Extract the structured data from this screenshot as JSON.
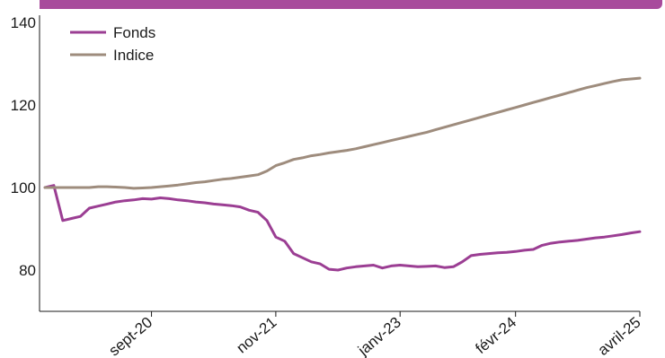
{
  "chart_data": {
    "type": "line",
    "title": "",
    "xlabel": "",
    "ylabel": "",
    "ylim": [
      70,
      140
    ],
    "yticks": [
      80,
      100,
      120,
      140
    ],
    "xticks": [
      "sept-20",
      "nov-21",
      "janv-23",
      "févr-24",
      "avril-25"
    ],
    "legend_position": "top-left",
    "grid": false,
    "x": [
      "2019-09",
      "2019-10",
      "2019-11",
      "2019-12",
      "2020-01",
      "2020-02",
      "2020-03",
      "2020-04",
      "2020-05",
      "2020-06",
      "2020-07",
      "2020-08",
      "2020-09",
      "2020-10",
      "2020-11",
      "2020-12",
      "2021-01",
      "2021-02",
      "2021-03",
      "2021-04",
      "2021-05",
      "2021-06",
      "2021-07",
      "2021-08",
      "2021-09",
      "2021-10",
      "2021-11",
      "2021-12",
      "2022-01",
      "2022-02",
      "2022-03",
      "2022-04",
      "2022-05",
      "2022-06",
      "2022-07",
      "2022-08",
      "2022-09",
      "2022-10",
      "2022-11",
      "2022-12",
      "2023-01",
      "2023-02",
      "2023-03",
      "2023-04",
      "2023-05",
      "2023-06",
      "2023-07",
      "2023-08",
      "2023-09",
      "2023-10",
      "2023-11",
      "2023-12",
      "2024-01",
      "2024-02",
      "2024-03",
      "2024-04",
      "2024-05",
      "2024-06",
      "2024-07",
      "2024-08",
      "2024-09",
      "2024-10",
      "2024-11",
      "2024-12",
      "2025-01",
      "2025-02",
      "2025-03",
      "2025-04"
    ],
    "series": [
      {
        "name": "Fonds",
        "color": "#9b3e93",
        "values": [
          100.0,
          100.5,
          92.0,
          92.5,
          93.0,
          95.0,
          95.5,
          96.0,
          96.5,
          96.8,
          97.0,
          97.3,
          97.2,
          97.5,
          97.3,
          97.0,
          96.8,
          96.5,
          96.3,
          96.0,
          95.8,
          95.6,
          95.3,
          94.5,
          94.0,
          92.0,
          88.0,
          87.0,
          84.0,
          83.0,
          82.0,
          81.5,
          80.2,
          80.0,
          80.5,
          80.8,
          81.0,
          81.2,
          80.5,
          81.0,
          81.2,
          81.0,
          80.8,
          80.9,
          81.0,
          80.6,
          80.8,
          82.0,
          83.5,
          83.8,
          84.0,
          84.2,
          84.3,
          84.5,
          84.8,
          85.0,
          86.0,
          86.5,
          86.8,
          87.0,
          87.2,
          87.5,
          87.8,
          88.0,
          88.3,
          88.6,
          89.0,
          89.3
        ]
      },
      {
        "name": "Indice",
        "color": "#9e8c7d",
        "values": [
          100.0,
          100.0,
          100.0,
          100.0,
          100.0,
          100.0,
          100.2,
          100.2,
          100.1,
          100.0,
          99.8,
          99.9,
          100.0,
          100.2,
          100.4,
          100.6,
          100.9,
          101.2,
          101.4,
          101.7,
          102.0,
          102.2,
          102.5,
          102.8,
          103.1,
          104.0,
          105.3,
          106.0,
          106.8,
          107.2,
          107.7,
          108.0,
          108.4,
          108.7,
          109.0,
          109.4,
          109.9,
          110.4,
          110.9,
          111.4,
          111.9,
          112.4,
          112.9,
          113.4,
          114.0,
          114.6,
          115.2,
          115.8,
          116.4,
          117.0,
          117.6,
          118.2,
          118.8,
          119.4,
          120.0,
          120.6,
          121.2,
          121.8,
          122.4,
          123.0,
          123.6,
          124.2,
          124.7,
          125.2,
          125.7,
          126.1,
          126.3,
          126.5
        ]
      }
    ]
  }
}
